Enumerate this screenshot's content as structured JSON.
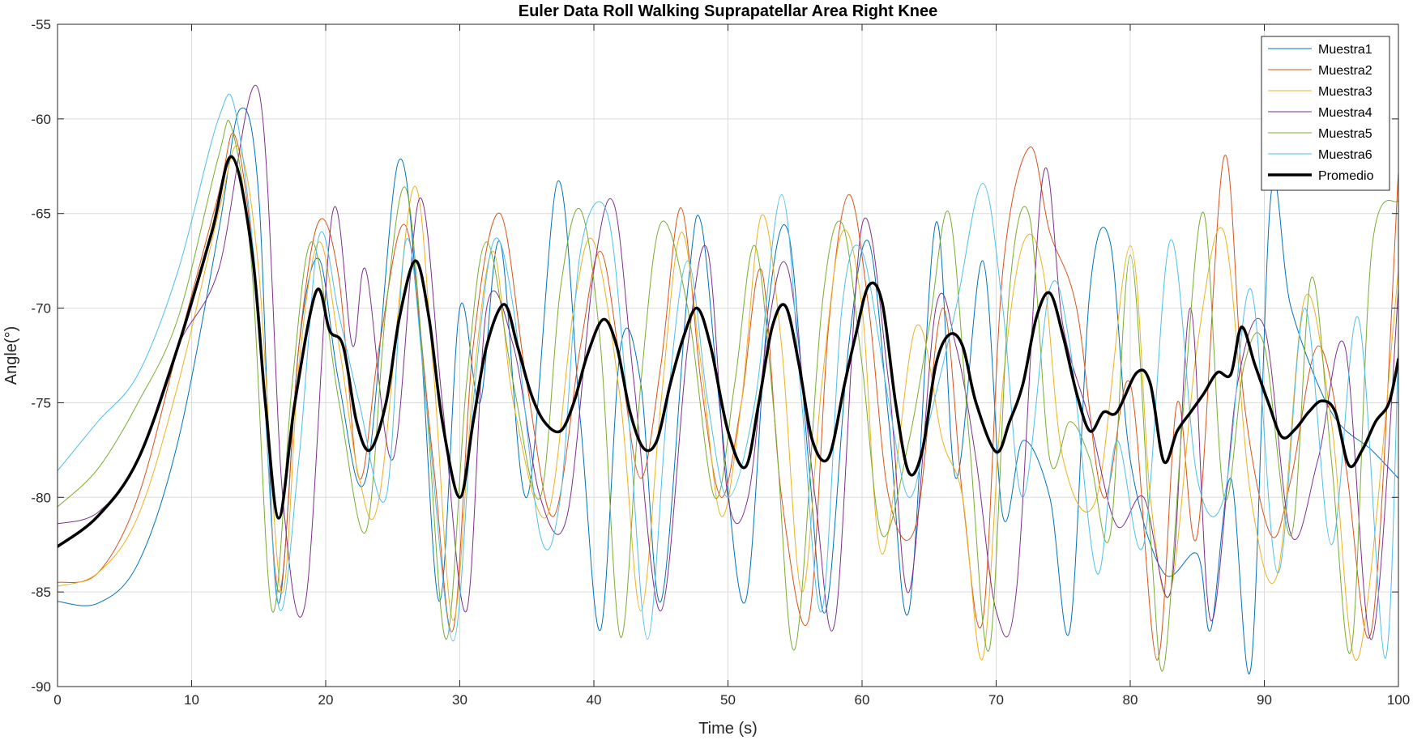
{
  "chart_data": {
    "type": "line",
    "title": "Euler Data Roll Walking Suprapatellar Area Right Knee",
    "xlabel": "Time (s)",
    "ylabel": "Angle(°)",
    "xlim": [
      0,
      100
    ],
    "ylim": [
      -90,
      -55
    ],
    "xticks": [
      0,
      10,
      20,
      30,
      40,
      50,
      60,
      70,
      80,
      90,
      100
    ],
    "yticks": [
      -90,
      -85,
      -80,
      -75,
      -70,
      -65,
      -60,
      -55
    ],
    "grid": true,
    "legend_position": "top-right",
    "series": [
      {
        "name": "Muestra1",
        "color": "#0072BD",
        "width": 1,
        "x": [
          0,
          3,
          6,
          9,
          12,
          13.6,
          15,
          16.4,
          18,
          19.5,
          21,
          23,
          25.4,
          27,
          28.5,
          30,
          31.5,
          33,
          35,
          37.3,
          39,
          40.5,
          42,
          43.5,
          45,
          47,
          48,
          49.5,
          51.3,
          53,
          54.5,
          56,
          57.3,
          59,
          60.5,
          62,
          63.5,
          65.5,
          67,
          69,
          70.5,
          72,
          74,
          75.5,
          77,
          78.5,
          80,
          82.5,
          85,
          86,
          87.5,
          89,
          90.5,
          92,
          95,
          98,
          100
        ],
        "y": [
          -85.5,
          -85.6,
          -83.5,
          -77,
          -66,
          -59.5,
          -64,
          -85.5,
          -72,
          -67.4,
          -74,
          -79,
          -62.3,
          -71,
          -85.5,
          -70,
          -75,
          -66.5,
          -80,
          -63.3,
          -76,
          -87,
          -72,
          -74,
          -85.5,
          -69,
          -65.5,
          -76,
          -85.5,
          -70,
          -66,
          -78,
          -86,
          -72,
          -66.5,
          -76,
          -86,
          -65.5,
          -79,
          -67.5,
          -81,
          -77,
          -80,
          -87,
          -69,
          -66.5,
          -78,
          -84,
          -83,
          -87,
          -79,
          -89,
          -64,
          -70,
          -75.5,
          -77.5,
          -79
        ]
      },
      {
        "name": "Muestra2",
        "color": "#D95319",
        "width": 1,
        "x": [
          0,
          3,
          6,
          9,
          12,
          13.3,
          15,
          16.5,
          18,
          19.5,
          21,
          22.5,
          24,
          26,
          28,
          29.5,
          31,
          33,
          35,
          37,
          39,
          40.5,
          42,
          43.5,
          45,
          46.5,
          48,
          49.5,
          51,
          52.5,
          54,
          56,
          57.5,
          59,
          60.5,
          62,
          64,
          66,
          67.5,
          69,
          70.5,
          72.5,
          74,
          76,
          78,
          80,
          82,
          83.5,
          85,
          87,
          88.5,
          90.5,
          92,
          94,
          96,
          98,
          100
        ],
        "y": [
          -84.5,
          -84,
          -80,
          -72,
          -64,
          -61,
          -70,
          -85,
          -72,
          -65.4,
          -68.5,
          -79,
          -72,
          -65.7,
          -78,
          -87,
          -72,
          -65,
          -74,
          -81,
          -72,
          -67,
          -73,
          -79,
          -73,
          -64.7,
          -74,
          -80,
          -75,
          -68,
          -80,
          -86.5,
          -71,
          -64,
          -70,
          -80,
          -81.5,
          -70,
          -80,
          -86.5,
          -68,
          -61.5,
          -66,
          -70,
          -80,
          -74,
          -88.6,
          -75,
          -82,
          -62,
          -75,
          -82,
          -79,
          -72,
          -78,
          -87,
          -62.8
        ]
      },
      {
        "name": "Muestra3",
        "color": "#EDB120",
        "width": 1,
        "x": [
          0,
          3,
          6,
          9,
          12,
          13.5,
          15,
          16.7,
          18,
          19.5,
          21,
          22.5,
          24,
          26.5,
          28,
          29.5,
          31,
          32.5,
          34,
          36.5,
          38.5,
          40,
          42,
          43.5,
          45,
          46.5,
          48,
          49.5,
          51,
          52.5,
          54,
          55.5,
          57,
          58.5,
          60,
          61.5,
          64,
          66,
          67.5,
          69,
          70.5,
          72,
          73.5,
          75,
          77.5,
          80,
          81.5,
          83,
          85,
          87,
          89,
          91,
          93,
          95,
          97,
          100
        ],
        "y": [
          -84.7,
          -84,
          -81,
          -74,
          -65,
          -61.5,
          -68,
          -85,
          -73,
          -66.5,
          -72,
          -79,
          -80,
          -63.7,
          -73,
          -86.5,
          -74,
          -67,
          -75,
          -81,
          -70,
          -66.5,
          -75,
          -86,
          -75,
          -66,
          -73,
          -81,
          -75,
          -65.1,
          -72,
          -85,
          -74,
          -66,
          -70,
          -83,
          -71,
          -77,
          -80,
          -88.5,
          -74,
          -66.6,
          -68,
          -78,
          -80,
          -66.7,
          -80,
          -85,
          -72,
          -66,
          -80,
          -84,
          -69.5,
          -76,
          -88.5,
          -68
        ]
      },
      {
        "name": "Muestra4",
        "color": "#7E2F8E",
        "width": 1,
        "x": [
          0,
          3,
          6,
          9,
          12,
          15,
          16.8,
          18.5,
          20.5,
          22,
          23,
          25,
          27,
          28.7,
          30.5,
          32,
          34,
          36,
          38,
          40,
          41.5,
          43,
          45,
          47,
          48.5,
          50,
          51.5,
          53,
          54.5,
          56.5,
          58,
          60,
          62,
          63.5,
          65.5,
          67,
          68.5,
          70,
          71.5,
          73.5,
          75,
          77,
          79,
          81,
          83,
          84.5,
          86,
          88,
          90,
          92,
          94,
          96,
          98,
          100
        ],
        "y": [
          -81.4,
          -80.8,
          -78,
          -72,
          -68,
          -58.5,
          -80,
          -85.5,
          -65,
          -72,
          -68,
          -78,
          -64.2,
          -75,
          -86,
          -70,
          -72,
          -80,
          -81,
          -68,
          -64.5,
          -74,
          -86,
          -72,
          -67,
          -80,
          -80,
          -71,
          -68,
          -80,
          -86.5,
          -65.6,
          -74,
          -85,
          -70,
          -72,
          -78,
          -86,
          -85,
          -63,
          -71,
          -76,
          -81.5,
          -80,
          -85,
          -70,
          -86.5,
          -74,
          -71,
          -82,
          -78,
          -72,
          -87.5,
          -69
        ]
      },
      {
        "name": "Muestra5",
        "color": "#77AC30",
        "width": 1,
        "x": [
          0,
          3,
          6,
          9,
          12,
          13,
          14.5,
          16,
          17.5,
          19,
          21,
          23,
          24.5,
          26,
          27.5,
          29,
          30.5,
          32,
          34,
          36,
          37.5,
          39,
          40.5,
          42,
          43.5,
          45,
          47,
          49,
          50.5,
          52,
          53.5,
          55,
          57,
          58.5,
          60,
          61.5,
          63.5,
          65,
          66.5,
          68,
          69.5,
          71,
          72.5,
          74,
          75.5,
          77,
          78.5,
          80,
          81.5,
          82.5,
          84,
          85.5,
          87,
          88.5,
          90,
          92,
          93.5,
          95,
          96.5,
          98,
          100
        ],
        "y": [
          -80.5,
          -78.5,
          -75,
          -70.5,
          -62,
          -60.5,
          -68,
          -86,
          -74,
          -66.5,
          -75,
          -81.8,
          -70,
          -63.7,
          -75,
          -87.5,
          -74,
          -66.5,
          -74,
          -80,
          -69,
          -64.8,
          -72,
          -87.4,
          -74,
          -65.5,
          -70,
          -80,
          -74,
          -66.7,
          -76,
          -88,
          -70,
          -65.5,
          -73,
          -82,
          -77,
          -71,
          -65,
          -77,
          -88,
          -69,
          -65.2,
          -78,
          -76,
          -78,
          -82,
          -67.2,
          -82,
          -89,
          -75,
          -65,
          -80,
          -73,
          -72,
          -82,
          -68.4,
          -78,
          -88,
          -67,
          -64.3
        ]
      },
      {
        "name": "Muestra6",
        "color": "#4DBEEE",
        "width": 1,
        "x": [
          0,
          3,
          6,
          9,
          12,
          13.3,
          15,
          16.5,
          18,
          19.5,
          21,
          22.5,
          24.5,
          26,
          27.5,
          29.5,
          31,
          32.5,
          34,
          36,
          37.5,
          39,
          41,
          42.5,
          44,
          45.5,
          47,
          48.5,
          50,
          52,
          54,
          55.5,
          57,
          58.5,
          60,
          62,
          63.5,
          65,
          67,
          69,
          70.5,
          72,
          74,
          75.5,
          77.5,
          79,
          81,
          83,
          85,
          87,
          89,
          91,
          93,
          95,
          97,
          99,
          100
        ],
        "y": [
          -78.6,
          -76,
          -73.5,
          -68,
          -60,
          -59.7,
          -70,
          -85.8,
          -78,
          -66.2,
          -70.4,
          -75,
          -80,
          -66.4,
          -75,
          -87.6,
          -75,
          -66.5,
          -70,
          -82,
          -80,
          -67,
          -65,
          -75,
          -87.5,
          -75,
          -67.5,
          -75,
          -80,
          -75,
          -64,
          -75,
          -86,
          -70,
          -67,
          -75,
          -80,
          -76,
          -70,
          -63.4,
          -70,
          -80,
          -69,
          -72,
          -84,
          -77,
          -82.5,
          -66.4,
          -79,
          -80,
          -69,
          -84,
          -70,
          -82.5,
          -70.5,
          -88.5,
          -72
        ]
      },
      {
        "name": "Promedio",
        "color": "#000000",
        "width": 3.5,
        "x": [
          0,
          3,
          6,
          9,
          11.5,
          13,
          14.5,
          15.5,
          16.5,
          17.7,
          19.3,
          20.3,
          21.3,
          22.3,
          23.3,
          24.5,
          25.5,
          26.7,
          27.7,
          28.7,
          30,
          31,
          32,
          33.3,
          34.3,
          35.3,
          36.3,
          37.5,
          38.5,
          39.5,
          40.7,
          41.7,
          42.7,
          43.7,
          44.7,
          45.7,
          46.7,
          47.7,
          48.7,
          50,
          51.3,
          52.3,
          53.3,
          54.3,
          55.3,
          56.3,
          57.5,
          58.7,
          59.5,
          60.5,
          61.5,
          62.5,
          63.5,
          64.5,
          65.5,
          66.5,
          67.5,
          68.5,
          70,
          71,
          72,
          73,
          74,
          75,
          76,
          77,
          78,
          79,
          80.5,
          81.5,
          82.5,
          83.5,
          84.5,
          85.5,
          86.5,
          87.5,
          88.3,
          89.3,
          90.3,
          91.3,
          92.3,
          93.3,
          94.3,
          95.3,
          96.3,
          97.3,
          98.3,
          99.3,
          100
        ],
        "y": [
          -82.6,
          -81,
          -78,
          -72,
          -66,
          -62,
          -67,
          -75,
          -81.1,
          -75,
          -69.1,
          -71.2,
          -72,
          -76,
          -77.5,
          -75,
          -70.5,
          -67.5,
          -70.5,
          -76,
          -80,
          -76,
          -72,
          -69.8,
          -72,
          -74.5,
          -76,
          -76.5,
          -75,
          -72.5,
          -70.6,
          -72,
          -75.5,
          -77.4,
          -77,
          -74,
          -71.5,
          -70,
          -72,
          -76.5,
          -78.4,
          -75,
          -71,
          -69.9,
          -73,
          -77,
          -77.9,
          -74,
          -71.5,
          -68.8,
          -69.7,
          -75,
          -78.7,
          -77.5,
          -73,
          -71.4,
          -72,
          -75,
          -77.6,
          -76,
          -74,
          -70.5,
          -69.2,
          -71.5,
          -74.5,
          -76.5,
          -75.5,
          -75.5,
          -73.4,
          -74,
          -78.1,
          -76.5,
          -75.5,
          -74.5,
          -73.4,
          -73.5,
          -71,
          -73,
          -75,
          -76.8,
          -76.4,
          -75.5,
          -74.9,
          -75.5,
          -78.3,
          -77.5,
          -76,
          -75,
          -72.7
        ]
      }
    ]
  }
}
